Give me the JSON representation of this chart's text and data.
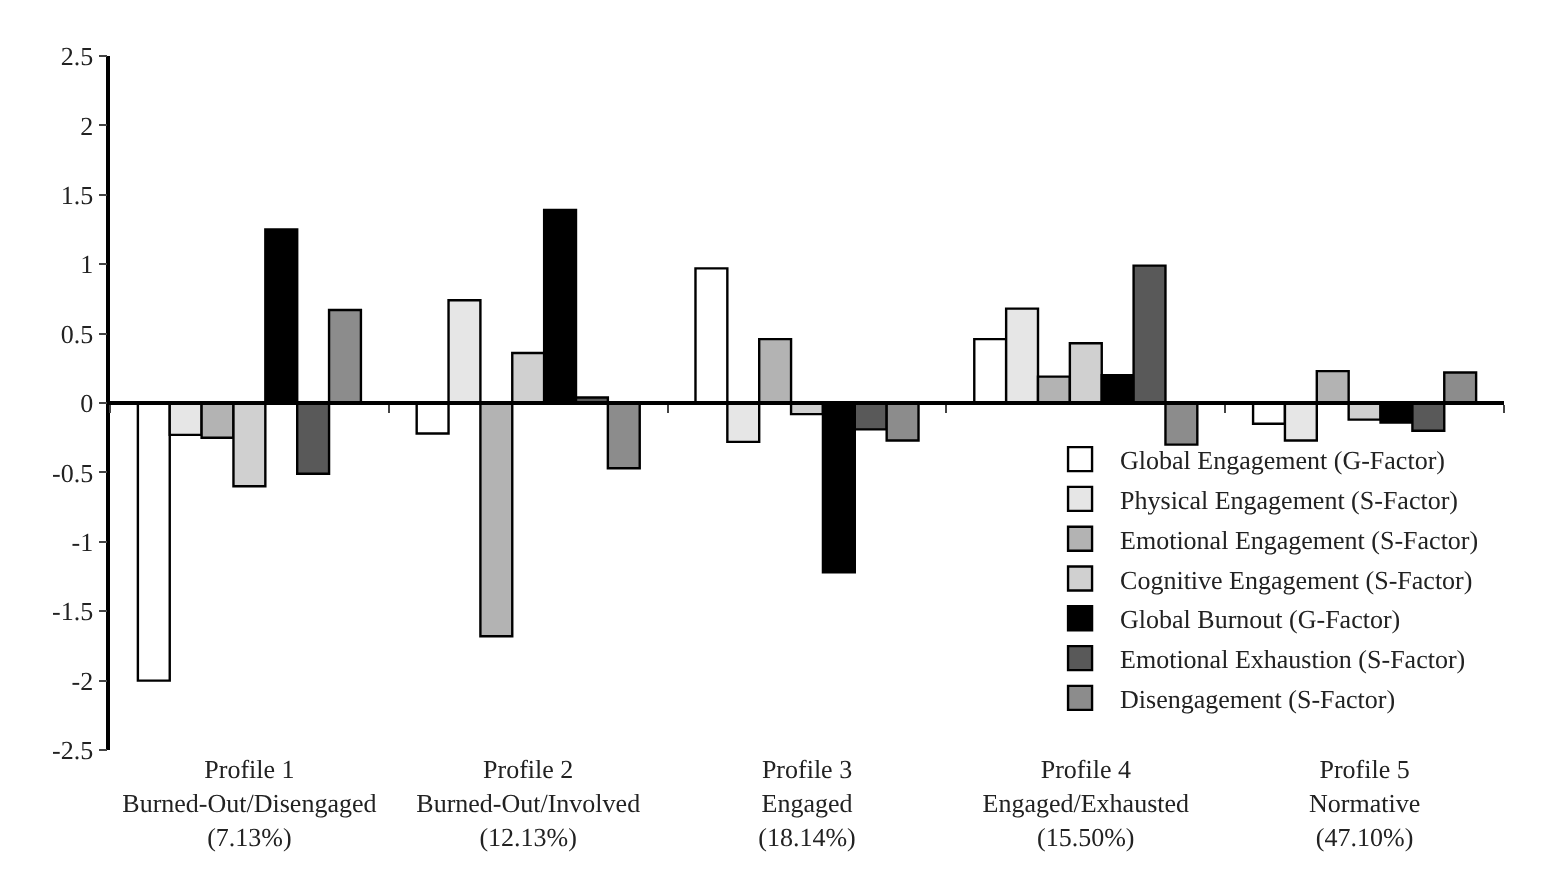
{
  "chart_data": {
    "type": "bar",
    "categories": [
      "Profile 1\nBurned-Out/Disengaged\n(7.13%)",
      "Profile 2\nBurned-Out/Involved\n(12.13%)",
      "Profile 3\nEngaged\n(18.14%)",
      "Profile 4\nEngaged/Exhausted\n(15.50%)",
      "Profile 5\nNormative\n(47.10%)"
    ],
    "series": [
      {
        "name": "Global Engagement (G-Factor)",
        "color": "#ffffff",
        "values": [
          -2.0,
          -0.22,
          0.97,
          0.46,
          -0.15
        ]
      },
      {
        "name": "Physical Engagement (S-Factor)",
        "color": "#e6e6e6",
        "values": [
          -0.23,
          0.74,
          -0.28,
          0.68,
          -0.27
        ]
      },
      {
        "name": "Emotional Engagement (S-Factor)",
        "color": "#b3b3b3",
        "values": [
          -0.25,
          -1.68,
          0.46,
          0.19,
          0.23
        ]
      },
      {
        "name": "Cognitive Engagement (S-Factor)",
        "color": "#d0d0d0",
        "values": [
          -0.6,
          0.36,
          -0.08,
          0.43,
          -0.12
        ]
      },
      {
        "name": "Global Burnout (G-Factor)",
        "color": "#000000",
        "values": [
          1.25,
          1.39,
          -1.22,
          0.2,
          -0.14
        ]
      },
      {
        "name": "Emotional Exhaustion (S-Factor)",
        "color": "#595959",
        "values": [
          -0.51,
          0.04,
          -0.19,
          0.99,
          -0.2
        ]
      },
      {
        "name": "Disengagement (S-Factor)",
        "color": "#8c8c8c",
        "values": [
          0.67,
          -0.47,
          -0.27,
          -0.3,
          0.22
        ]
      }
    ],
    "ylim": [
      -2.5,
      2.5
    ],
    "yticks": [
      -2.5,
      -2,
      -1.5,
      -1,
      -0.5,
      0,
      0.5,
      1,
      1.5,
      2,
      2.5
    ],
    "legend": "bottom right"
  }
}
